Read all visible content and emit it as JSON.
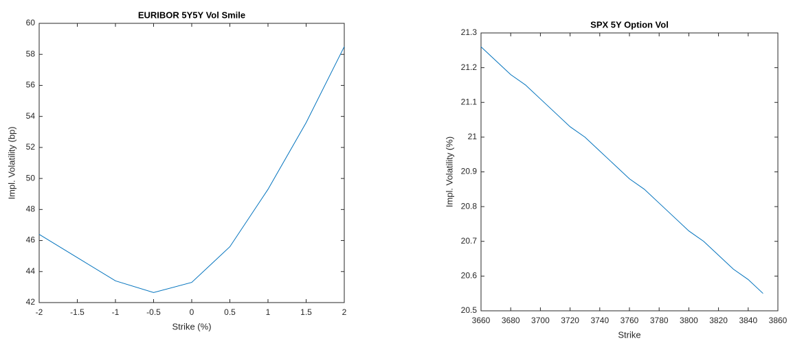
{
  "chart_data": [
    {
      "type": "line",
      "title": "EURIBOR 5Y5Y Vol Smile",
      "x_label": "Strike (%)",
      "y_label": "Impl. Volatility (bp)",
      "x": [
        -2,
        -1.5,
        -1,
        -0.5,
        0,
        0.5,
        1,
        1.5,
        2
      ],
      "series": [
        {
          "color": "#0072bd",
          "values": [
            46.4,
            44.9,
            43.4,
            42.65,
            43.3,
            45.6,
            49.3,
            53.6,
            58.5
          ]
        }
      ],
      "xlim": [
        -2,
        2
      ],
      "xticks": [
        -2,
        -1.5,
        -1,
        -0.5,
        0,
        0.5,
        1,
        1.5,
        2
      ],
      "ylim": [
        42,
        60
      ],
      "yticks": [
        42,
        44,
        46,
        48,
        50,
        52,
        54,
        56,
        58,
        60
      ]
    },
    {
      "type": "line",
      "title": "SPX 5Y Option Vol",
      "x_label": "Strike",
      "y_label": "Impl. Volatility (%)",
      "x": [
        3660,
        3670,
        3680,
        3690,
        3700,
        3710,
        3720,
        3730,
        3740,
        3750,
        3760,
        3770,
        3780,
        3790,
        3800,
        3810,
        3820,
        3830,
        3840,
        3850
      ],
      "series": [
        {
          "color": "#0072bd",
          "values": [
            21.26,
            21.22,
            21.18,
            21.15,
            21.11,
            21.07,
            21.03,
            21.0,
            20.96,
            20.92,
            20.88,
            20.85,
            20.81,
            20.77,
            20.73,
            20.7,
            20.66,
            20.62,
            20.59,
            20.55
          ]
        }
      ],
      "xlim": [
        3660,
        3860
      ],
      "xticks": [
        3660,
        3680,
        3700,
        3720,
        3740,
        3760,
        3780,
        3800,
        3820,
        3840,
        3860
      ],
      "ylim": [
        20.5,
        21.3
      ],
      "yticks": [
        20.5,
        20.6,
        20.7,
        20.8,
        20.9,
        21,
        21.1,
        21.2,
        21.3
      ]
    }
  ]
}
